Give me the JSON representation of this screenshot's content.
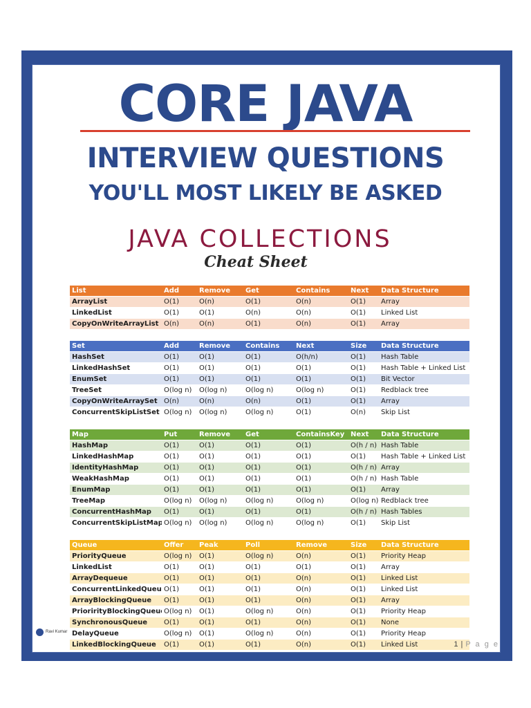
{
  "cover": {
    "title_line1": "CORE JAVA",
    "title_line2": "INTERVIEW QUESTIONS",
    "title_line3": "YOU'LL MOST LIKELY BE ASKED",
    "section_title": "JAVA COLLECTIONS",
    "subtitle": "Cheat Sheet"
  },
  "colors": {
    "frame": "#2f4e94",
    "list": "#e97a2d",
    "set": "#4a6fc2",
    "map": "#6fa83a",
    "queue": "#f5b61e",
    "title": "#2c4a8c",
    "section": "#8c1a3f"
  },
  "tables": {
    "list": {
      "headers": [
        "List",
        "Add",
        "Remove",
        "Get",
        "Contains",
        "Next",
        "Data Structure"
      ],
      "rows": [
        [
          "ArrayList",
          "O(1)",
          "O(n)",
          "O(1)",
          "O(n)",
          "O(1)",
          "Array"
        ],
        [
          "LinkedList",
          "O(1)",
          "O(1)",
          "O(n)",
          "O(n)",
          "O(1)",
          "Linked List"
        ],
        [
          "CopyOnWriteArrayList",
          "O(n)",
          "O(n)",
          "O(1)",
          "O(n)",
          "O(1)",
          "Array"
        ]
      ]
    },
    "set": {
      "headers": [
        "Set",
        "Add",
        "Remove",
        "Contains",
        "Next",
        "Size",
        "Data Structure"
      ],
      "rows": [
        [
          "HashSet",
          "O(1)",
          "O(1)",
          "O(1)",
          "O(h/n)",
          "O(1)",
          "Hash Table"
        ],
        [
          "LinkedHashSet",
          "O(1)",
          "O(1)",
          "O(1)",
          "O(1)",
          "O(1)",
          "Hash Table + Linked List"
        ],
        [
          "EnumSet",
          "O(1)",
          "O(1)",
          "O(1)",
          "O(1)",
          "O(1)",
          "Bit Vector"
        ],
        [
          "TreeSet",
          "O(log n)",
          "O(log n)",
          "O(log n)",
          "O(log n)",
          "O(1)",
          "Redblack tree"
        ],
        [
          "CopyOnWriteArraySet",
          "O(n)",
          "O(n)",
          "O(n)",
          "O(1)",
          "O(1)",
          "Array"
        ],
        [
          "ConcurrentSkipListSet",
          "O(log n)",
          "O(log n)",
          "O(log n)",
          "O(1)",
          "O(n)",
          "Skip List"
        ]
      ]
    },
    "map": {
      "headers": [
        "Map",
        "Put",
        "Remove",
        "Get",
        "ContainsKey",
        "Next",
        "Data Structure"
      ],
      "rows": [
        [
          "HashMap",
          "O(1)",
          "O(1)",
          "O(1)",
          "O(1)",
          "O(h / n)",
          "Hash Table"
        ],
        [
          "LinkedHashMap",
          "O(1)",
          "O(1)",
          "O(1)",
          "O(1)",
          "O(1)",
          "Hash Table + Linked List"
        ],
        [
          "IdentityHashMap",
          "O(1)",
          "O(1)",
          "O(1)",
          "O(1)",
          "O(h / n)",
          "Array"
        ],
        [
          "WeakHashMap",
          "O(1)",
          "O(1)",
          "O(1)",
          "O(1)",
          "O(h / n)",
          "Hash Table"
        ],
        [
          "EnumMap",
          "O(1)",
          "O(1)",
          "O(1)",
          "O(1)",
          "O(1)",
          "Array"
        ],
        [
          "TreeMap",
          "O(log n)",
          "O(log n)",
          "O(log n)",
          "O(log n)",
          "O(log n)",
          "Redblack tree"
        ],
        [
          "ConcurrentHashMap",
          "O(1)",
          "O(1)",
          "O(1)",
          "O(1)",
          "O(h / n)",
          "Hash Tables"
        ],
        [
          "ConcurrentSkipListMap",
          "O(log n)",
          "O(log n)",
          "O(log n)",
          "O(log n)",
          "O(1)",
          "Skip List"
        ]
      ]
    },
    "queue": {
      "headers": [
        "Queue",
        "Offer",
        "Peak",
        "Poll",
        "Remove",
        "Size",
        "Data Structure"
      ],
      "rows": [
        [
          "PriorityQueue",
          "O(log n)",
          "O(1)",
          "O(log n)",
          "O(n)",
          "O(1)",
          "Priority Heap"
        ],
        [
          "LinkedList",
          "O(1)",
          "O(1)",
          "O(1)",
          "O(1)",
          "O(1)",
          "Array"
        ],
        [
          "ArrayDequeue",
          "O(1)",
          "O(1)",
          "O(1)",
          "O(n)",
          "O(1)",
          "Linked List"
        ],
        [
          "ConcurrentLinkedQueue",
          "O(1)",
          "O(1)",
          "O(1)",
          "O(n)",
          "O(1)",
          "Linked List"
        ],
        [
          "ArrayBlockingQueue",
          "O(1)",
          "O(1)",
          "O(1)",
          "O(n)",
          "O(1)",
          "Array"
        ],
        [
          "PriorirityBlockingQueue",
          "O(log n)",
          "O(1)",
          "O(log n)",
          "O(n)",
          "O(1)",
          "Priority Heap"
        ],
        [
          "SynchronousQueue",
          "O(1)",
          "O(1)",
          "O(1)",
          "O(n)",
          "O(1)",
          "None"
        ],
        [
          "DelayQueue",
          "O(log n)",
          "O(1)",
          "O(log n)",
          "O(n)",
          "O(1)",
          "Priority Heap"
        ],
        [
          "LinkedBlockingQueue",
          "O(1)",
          "O(1)",
          "O(1)",
          "O(n)",
          "O(1)",
          "Linked List"
        ]
      ]
    }
  },
  "footer": {
    "author_logo_text": "Ravi Kumar",
    "page_number": "1",
    "page_label": "P a g e"
  }
}
